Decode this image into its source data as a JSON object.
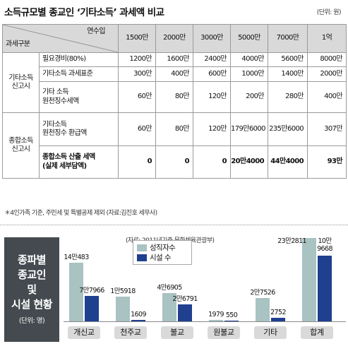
{
  "header": {
    "title": "소득규모별 종교인 ‘기타소득’ 과세액 비교",
    "unit": "(단위: 원)"
  },
  "table": {
    "corner_top": "연수입",
    "corner_bottom": "과세구분",
    "columns": [
      "1500만",
      "2000만",
      "3000만",
      "5000만",
      "7000만",
      "1억"
    ],
    "groups": [
      {
        "label_lines": [
          "기타소득",
          "신고시"
        ],
        "rows": [
          {
            "item_lines": [
              "필요경비(80%)"
            ],
            "values": [
              "1200만",
              "1600만",
              "2400만",
              "4000만",
              "5600만",
              "8000만"
            ]
          },
          {
            "item_lines": [
              "기타소득 과세표준"
            ],
            "values": [
              "300만",
              "400만",
              "600만",
              "1000만",
              "1400만",
              "2000만"
            ]
          },
          {
            "item_lines": [
              "기타 소득",
              "원천징수세액"
            ],
            "values": [
              "60만",
              "80만",
              "120만",
              "200만",
              "280만",
              "400만"
            ]
          }
        ]
      },
      {
        "label_lines": [
          "종합소득",
          "신고시"
        ],
        "rows": [
          {
            "item_lines": [
              "기타소득",
              "원천징수 환급액"
            ],
            "values": [
              "60만",
              "80만",
              "120만",
              "179만6000",
              "235만6000",
              "307만"
            ]
          },
          {
            "item_lines": [
              "종합소득 산출 세액",
              "(실제 세부담액)"
            ],
            "values": [
              "0",
              "0",
              "0",
              "20만4000",
              "44만4000",
              "93만"
            ],
            "bold": true
          }
        ]
      }
    ]
  },
  "footnote": "＊4인가족 기준, 주민세 및 특별공제 제외 (자료:김진호 세무사)",
  "side": {
    "lines": [
      "종파별",
      "종교인",
      "및",
      "시설 현황"
    ],
    "unit": "(단위: 명)"
  },
  "chart_data": {
    "type": "bar",
    "source": "(자료: 2011년기준,문화체육관광부)",
    "categories": [
      "개신교",
      "천주교",
      "불교",
      "원불교",
      "기타",
      "합계"
    ],
    "series": [
      {
        "name": "성직자수",
        "color": "#a9c2c2",
        "values": [
          140483,
          15918,
          46905,
          1979,
          27526,
          232811
        ],
        "labels": [
          "14만483",
          "1만5918",
          "4만6905",
          "1979",
          "2만7526",
          "23만2811"
        ]
      },
      {
        "name": "시설 수",
        "color": "#1f3f8f",
        "values": [
          77966,
          1609,
          26791,
          550,
          2752,
          109668
        ],
        "labels": [
          "7만7966",
          "1609",
          "2만6791",
          "550",
          "2752",
          "10만9668"
        ]
      }
    ]
  }
}
